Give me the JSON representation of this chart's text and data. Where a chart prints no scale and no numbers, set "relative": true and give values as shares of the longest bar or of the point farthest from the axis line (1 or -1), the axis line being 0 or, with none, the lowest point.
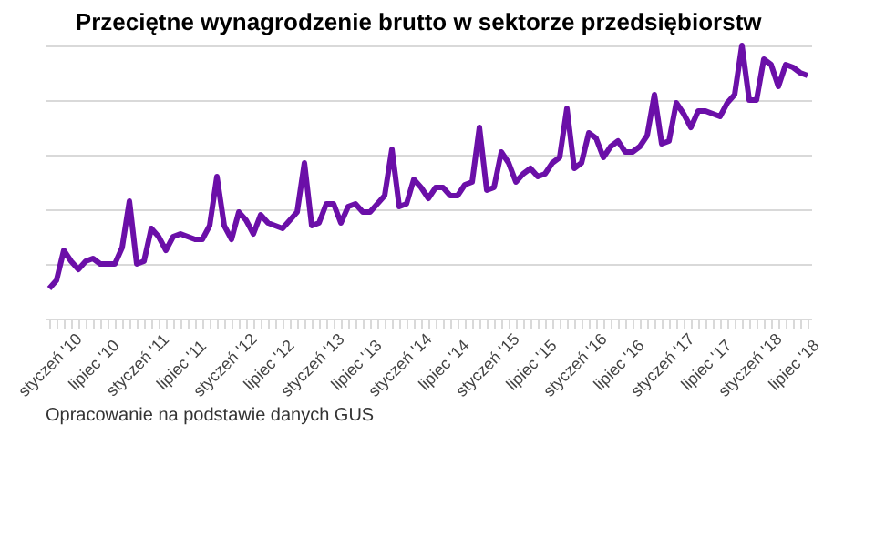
{
  "chart_data": {
    "type": "line",
    "title": "Przeciętne wynagrodzenie brutto w sektorze przedsiębiorstw",
    "categories": [
      "styczeń '10",
      null,
      null,
      null,
      null,
      null,
      "lipiec '10",
      null,
      null,
      null,
      null,
      null,
      "styczeń '11",
      null,
      null,
      null,
      null,
      null,
      "lipiec '11",
      null,
      null,
      null,
      null,
      null,
      "styczeń '12",
      null,
      null,
      null,
      null,
      null,
      "lipiec '12",
      null,
      null,
      null,
      null,
      null,
      "styczeń '13",
      null,
      null,
      null,
      null,
      null,
      "lipiec '13",
      null,
      null,
      null,
      null,
      null,
      "styczeń '14",
      null,
      null,
      null,
      null,
      null,
      "lipiec '14",
      null,
      null,
      null,
      null,
      null,
      "styczeń '15",
      null,
      null,
      null,
      null,
      null,
      "lipiec '15",
      null,
      null,
      null,
      null,
      null,
      "styczeń '16",
      null,
      null,
      null,
      null,
      null,
      "lipiec '16",
      null,
      null,
      null,
      null,
      null,
      "styczeń '17",
      null,
      null,
      null,
      null,
      null,
      "lipiec '17",
      null,
      null,
      null,
      null,
      null,
      "styczeń '18",
      null,
      null,
      null,
      null,
      null,
      "lipiec '18",
      null,
      null
    ],
    "series": [
      {
        "color": "#6b0fa8",
        "values": [
          0.11,
          0.14,
          0.25,
          0.21,
          0.18,
          0.21,
          0.22,
          0.2,
          0.2,
          0.2,
          0.26,
          0.43,
          0.2,
          0.21,
          0.33,
          0.3,
          0.25,
          0.3,
          0.31,
          0.3,
          0.29,
          0.29,
          0.34,
          0.52,
          0.34,
          0.29,
          0.39,
          0.36,
          0.31,
          0.38,
          0.35,
          0.34,
          0.33,
          0.36,
          0.39,
          0.57,
          0.34,
          0.35,
          0.42,
          0.42,
          0.35,
          0.41,
          0.42,
          0.39,
          0.39,
          0.42,
          0.45,
          0.62,
          0.41,
          0.42,
          0.51,
          0.48,
          0.44,
          0.48,
          0.48,
          0.45,
          0.45,
          0.49,
          0.5,
          0.7,
          0.47,
          0.48,
          0.61,
          0.57,
          0.5,
          0.53,
          0.55,
          0.52,
          0.53,
          0.57,
          0.59,
          0.77,
          0.55,
          0.57,
          0.68,
          0.66,
          0.59,
          0.63,
          0.65,
          0.61,
          0.61,
          0.63,
          0.67,
          0.82,
          0.64,
          0.65,
          0.79,
          0.75,
          0.7,
          0.76,
          0.76,
          0.75,
          0.74,
          0.79,
          0.82,
          1,
          0.8,
          0.8,
          0.95,
          0.93,
          0.85,
          0.93,
          0.92,
          0.9,
          0.89
        ]
      }
    ],
    "relative": true,
    "grid": "y",
    "marker": "none",
    "line_style": "solid",
    "annotations": [
      "Opracowanie na podstawie danych GUS"
    ]
  }
}
